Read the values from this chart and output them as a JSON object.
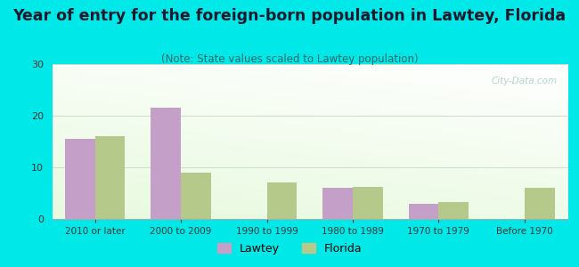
{
  "title": "Year of entry for the foreign-born population in Lawtey, Florida",
  "subtitle": "(Note: State values scaled to Lawtey population)",
  "categories": [
    "2010 or later",
    "2000 to 2009",
    "1990 to 1999",
    "1980 to 1989",
    "1970 to 1979",
    "Before 1970"
  ],
  "lawtey_values": [
    15.5,
    21.5,
    0,
    6,
    3,
    0
  ],
  "florida_values": [
    16,
    9,
    7,
    6.2,
    3.2,
    6
  ],
  "lawtey_color": "#c4a0c8",
  "florida_color": "#b5c98a",
  "bg_outer": "#00e8e8",
  "title_color": "#1a1a2e",
  "subtitle_color": "#336666",
  "ylim": [
    0,
    30
  ],
  "yticks": [
    0,
    10,
    20,
    30
  ],
  "bar_width": 0.35,
  "legend_labels": [
    "Lawtey",
    "Florida"
  ],
  "title_fontsize": 12.5,
  "subtitle_fontsize": 8.5,
  "watermark_text": "City-Data.com",
  "watermark_color": "#aacccc"
}
